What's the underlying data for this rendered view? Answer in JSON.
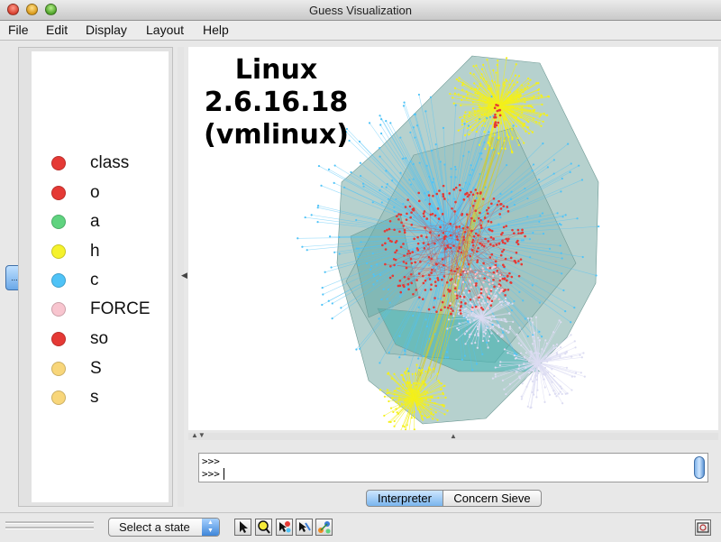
{
  "window": {
    "title": "Guess Visualization"
  },
  "menu": [
    "File",
    "Edit",
    "Display",
    "Layout",
    "Help"
  ],
  "legend": [
    {
      "label": "class",
      "color": "#e53935"
    },
    {
      "label": "o",
      "color": "#e53935"
    },
    {
      "label": "a",
      "color": "#5fd37f"
    },
    {
      "label": "h",
      "color": "#f5f22c"
    },
    {
      "label": "c",
      "color": "#4fc3f7"
    },
    {
      "label": "FORCE",
      "color": "#f8c5cf"
    },
    {
      "label": "so",
      "color": "#e53935"
    },
    {
      "label": "S",
      "color": "#f8d67a"
    },
    {
      "label": "s",
      "color": "#f8d67a"
    }
  ],
  "graph": {
    "title_lines": [
      "Linux",
      "2.6.16.18",
      "(vmlinux)"
    ],
    "colors": {
      "hull": "#8fb8b3",
      "yellow": "#f4f01a",
      "cyan": "#4fc3f7",
      "red": "#e53935",
      "pink": "#f8c5cf",
      "lavender": "#dcdcf2"
    }
  },
  "console": {
    "lines": [
      ">>>",
      ">>>"
    ]
  },
  "tabs": {
    "interpreter": "Interpreter",
    "concern_sieve": "Concern Sieve"
  },
  "status": {
    "select_state": "Select a state"
  },
  "toolbar": {
    "tools": [
      "pointer-tool-icon",
      "zoom-tool-icon",
      "node-select-tool-icon",
      "edge-select-tool-icon",
      "layout-tool-icon"
    ],
    "snapshot_icon": "snapshot-icon"
  }
}
